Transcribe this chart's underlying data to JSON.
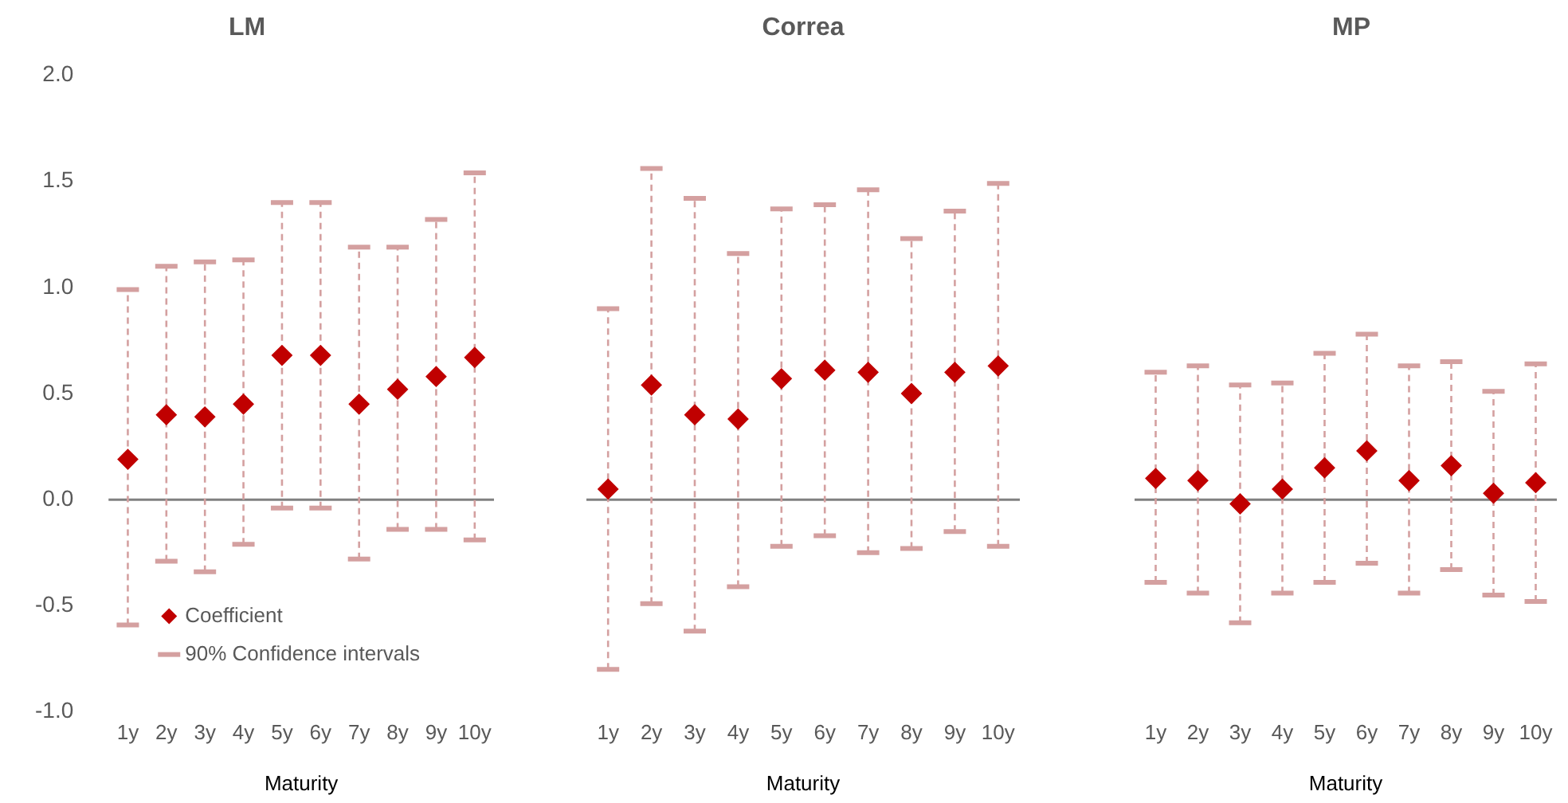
{
  "chart_data": [
    {
      "type": "scatter",
      "title": "LM",
      "xlabel": "Maturity",
      "categories": [
        "1y",
        "2y",
        "3y",
        "4y",
        "5y",
        "6y",
        "7y",
        "8y",
        "9y",
        "10y"
      ],
      "ylim": [
        -1,
        2
      ],
      "yticks": [
        {
          "value": -1,
          "label": "-1.0"
        },
        {
          "value": -0.5,
          "label": "-0.5"
        },
        {
          "value": 0,
          "label": "0.0"
        },
        {
          "value": 0.5,
          "label": "0.5"
        },
        {
          "value": 1,
          "label": "1.0"
        },
        {
          "value": 1.5,
          "label": "1.5"
        },
        {
          "value": 2,
          "label": "2.0"
        }
      ],
      "marker": "diamond",
      "legend": "bottom left",
      "annotations": [
        "90% Confidence intervals"
      ],
      "series": [
        {
          "name": "Coefficient",
          "color": "#c00000",
          "values": [
            0.19,
            0.4,
            0.39,
            0.45,
            0.68,
            0.68,
            0.45,
            0.52,
            0.58,
            0.67
          ],
          "errors": [
            [
              -0.59,
              0.99
            ],
            [
              -0.29,
              1.1
            ],
            [
              -0.34,
              1.12
            ],
            [
              -0.21,
              1.13
            ],
            [
              -0.04,
              1.4
            ],
            [
              -0.04,
              1.4
            ],
            [
              -0.28,
              1.19
            ],
            [
              -0.14,
              1.19
            ],
            [
              -0.14,
              1.32
            ],
            [
              -0.19,
              1.54
            ]
          ]
        }
      ]
    },
    {
      "type": "scatter",
      "title": "Correa",
      "xlabel": "Maturity",
      "categories": [
        "1y",
        "2y",
        "3y",
        "4y",
        "5y",
        "6y",
        "7y",
        "8y",
        "9y",
        "10y"
      ],
      "ylim": [
        -1,
        2
      ],
      "tick_labels": "x",
      "marker": "diamond",
      "series": [
        {
          "color": "#c00000",
          "values": [
            0.05,
            0.54,
            0.4,
            0.38,
            0.57,
            0.61,
            0.6,
            0.5,
            0.6,
            0.63
          ],
          "errors": [
            [
              -0.8,
              0.9
            ],
            [
              -0.49,
              1.56
            ],
            [
              -0.62,
              1.42
            ],
            [
              -0.41,
              1.16
            ],
            [
              -0.22,
              1.37
            ],
            [
              -0.17,
              1.39
            ],
            [
              -0.25,
              1.46
            ],
            [
              -0.23,
              1.23
            ],
            [
              -0.15,
              1.36
            ],
            [
              -0.22,
              1.49
            ]
          ]
        }
      ]
    },
    {
      "type": "scatter",
      "title": "MP",
      "xlabel": "Maturity",
      "categories": [
        "1y",
        "2y",
        "3y",
        "4y",
        "5y",
        "6y",
        "7y",
        "8y",
        "9y",
        "10y"
      ],
      "ylim": [
        -1,
        2
      ],
      "tick_labels": "x",
      "marker": "diamond",
      "series": [
        {
          "color": "#c00000",
          "values": [
            0.1,
            0.09,
            -0.02,
            0.05,
            0.15,
            0.23,
            0.09,
            0.16,
            0.03,
            0.08
          ],
          "errors": [
            [
              -0.39,
              0.6
            ],
            [
              -0.44,
              0.63
            ],
            [
              -0.58,
              0.54
            ],
            [
              -0.44,
              0.55
            ],
            [
              -0.39,
              0.69
            ],
            [
              -0.3,
              0.78
            ],
            [
              -0.44,
              0.63
            ],
            [
              -0.33,
              0.65
            ],
            [
              -0.45,
              0.51
            ],
            [
              -0.48,
              0.64
            ]
          ]
        }
      ]
    }
  ]
}
